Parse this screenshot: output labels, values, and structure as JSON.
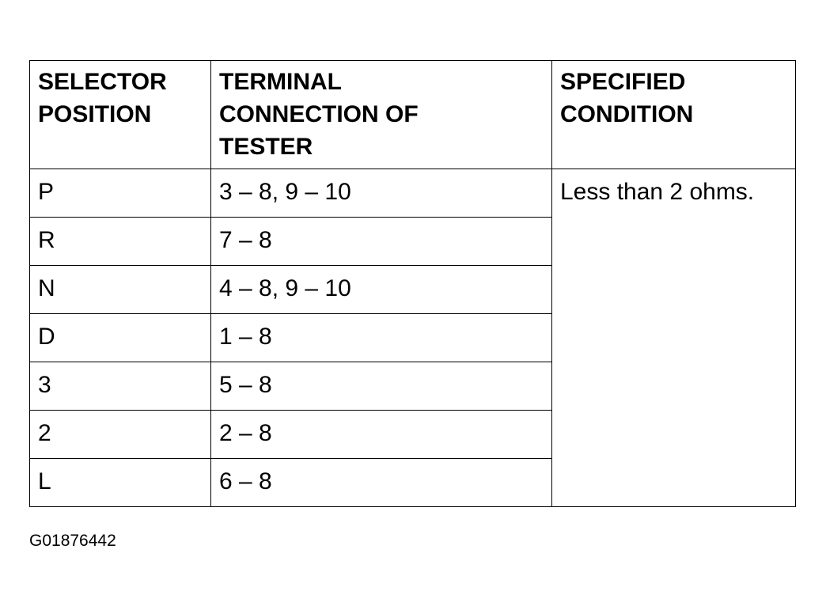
{
  "table": {
    "headers": [
      "SELECTOR\nPOSITION",
      "TERMINAL\nCONNECTION OF\nTESTER",
      "SPECIFIED\nCONDITION"
    ],
    "rows": [
      [
        "P",
        "3 – 8, 9 – 10"
      ],
      [
        "R",
        "7 – 8"
      ],
      [
        "N",
        "4 – 8, 9 – 10"
      ],
      [
        "D",
        "1 – 8"
      ],
      [
        "3",
        "5 – 8"
      ],
      [
        "2",
        "2 – 8"
      ],
      [
        "L",
        "6 – 8"
      ]
    ],
    "condition": "Less than 2 ohms."
  },
  "figure_code": "G01876442"
}
